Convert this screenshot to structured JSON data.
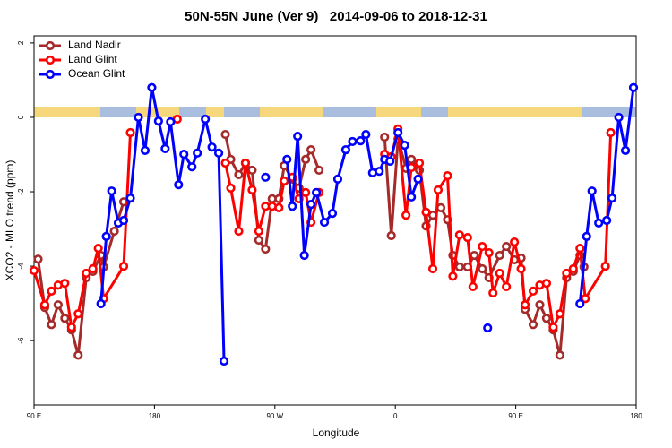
{
  "chart_data": {
    "type": "line",
    "title": "50N-55N June (Ver 9)   2014-09-06 to 2018-12-31",
    "x_label": "Longitude",
    "y_label": "XCO2 - MLO trend (ppm)",
    "xlim": [
      90,
      540
    ],
    "ylim": [
      -7.73,
      2.19
    ],
    "xticks": [
      {
        "value": 90,
        "label": "90 E"
      },
      {
        "value": 180,
        "label": "180"
      },
      {
        "value": 270,
        "label": "90 W"
      },
      {
        "value": 360,
        "label": "0"
      },
      {
        "value": 450,
        "label": "90 E"
      },
      {
        "value": 540,
        "label": "180"
      }
    ],
    "yticks": [
      2,
      0,
      -2,
      -4,
      -6
    ],
    "legend": "top-left",
    "series": [
      {
        "name": "Land Nadir",
        "color": "#a52a2a",
        "x": [
          93,
          98,
          103,
          108,
          113,
          118,
          123,
          129,
          134,
          140,
          142,
          150,
          157,
          null,
          233,
          237,
          243,
          248,
          253,
          258,
          263,
          268,
          273,
          277,
          283,
          288,
          293,
          297,
          303,
          null,
          352,
          357,
          362,
          368,
          372,
          378,
          383,
          388,
          394,
          399,
          403,
          408,
          414,
          419,
          425,
          430,
          438,
          443,
          449,
          454,
          457,
          463,
          468,
          473,
          478,
          483,
          488,
          493,
          498,
          501
        ],
        "values": [
          -3.81,
          -5.11,
          -5.57,
          -5.04,
          -5.4,
          -5.71,
          -6.39,
          -4.31,
          -4.14,
          -3.71,
          -4.02,
          -3.06,
          -2.27,
          null,
          -0.46,
          -1.13,
          -1.54,
          -1.23,
          -1.42,
          -3.3,
          -3.54,
          -2.19,
          -2.19,
          -1.3,
          -1.66,
          -1.9,
          -1.13,
          -0.87,
          -1.42,
          null,
          -0.53,
          -3.18,
          -0.58,
          -1.37,
          -1.13,
          -1.42,
          -2.92,
          -2.63,
          -2.43,
          -2.75,
          -3.71,
          -4.02,
          -4.02,
          -3.71,
          -4.07,
          -4.31,
          -3.71,
          -3.47,
          -3.83,
          -3.78,
          -5.16,
          -5.57,
          -5.04,
          -5.4,
          -5.71,
          -6.39,
          -4.31,
          -4.14,
          -3.71,
          -4.02
        ]
      },
      {
        "name": "Land Glint",
        "color": "#ff0000",
        "x": [
          90,
          98,
          103,
          108,
          113,
          118,
          123,
          129,
          134,
          138,
          142,
          157,
          162,
          null,
          197,
          null,
          233,
          237,
          243,
          248,
          253,
          258,
          263,
          268,
          273,
          277,
          283,
          288,
          293,
          297,
          303,
          null,
          352,
          357,
          362,
          368,
          372,
          378,
          383,
          388,
          392,
          399,
          403,
          408,
          414,
          418,
          425,
          430,
          433,
          438,
          443,
          449,
          454,
          457,
          463,
          468,
          473,
          478,
          483,
          488,
          493,
          498,
          502,
          517,
          521
        ],
        "values": [
          -4.12,
          -5.04,
          -4.67,
          -4.51,
          -4.46,
          -5.64,
          -5.28,
          -4.19,
          -4.07,
          -3.52,
          -4.87,
          -4.0,
          -0.41,
          null,
          -0.05,
          null,
          -1.23,
          -1.9,
          -3.06,
          -1.23,
          -1.95,
          -3.06,
          -2.39,
          -2.39,
          -2.43,
          -1.71,
          -1.61,
          -2.19,
          -2.02,
          -2.82,
          -2.02,
          null,
          -0.99,
          -1.06,
          -0.31,
          -2.63,
          -1.35,
          -1.23,
          -2.55,
          -4.07,
          -1.95,
          -1.57,
          -4.27,
          -3.16,
          -3.23,
          -4.55,
          -3.47,
          -3.64,
          -4.72,
          -4.19,
          -4.55,
          -3.35,
          -4.07,
          -5.04,
          -4.67,
          -4.51,
          -4.46,
          -5.64,
          -5.28,
          -4.19,
          -4.07,
          -3.52,
          -4.87,
          -4.0,
          -0.41
        ]
      },
      {
        "name": "Ocean Glint",
        "color": "#0000ff",
        "x": [
          140,
          144,
          148,
          153,
          157,
          162,
          168,
          173,
          178,
          183,
          188,
          192,
          198,
          202,
          208,
          212,
          218,
          223,
          228,
          232,
          null,
          263,
          null,
          279,
          283,
          287,
          292,
          297,
          301,
          307,
          313,
          317,
          323,
          328,
          334,
          338,
          343,
          348,
          352,
          356,
          362,
          367,
          372,
          377,
          null,
          429,
          null,
          498,
          503,
          507,
          512,
          518,
          522,
          527,
          532,
          538
        ],
        "values": [
          -5.01,
          -3.2,
          -1.98,
          -2.84,
          -2.77,
          -2.17,
          0.0,
          -0.89,
          0.8,
          -0.1,
          -0.84,
          -0.12,
          -1.81,
          -0.99,
          -1.33,
          -0.96,
          -0.05,
          -0.8,
          -0.96,
          -6.55,
          null,
          -1.61,
          null,
          -1.13,
          -2.39,
          -0.51,
          -3.71,
          -2.34,
          -2.02,
          -2.82,
          -2.58,
          -1.66,
          -0.87,
          -0.65,
          -0.63,
          -0.46,
          -1.49,
          -1.45,
          -1.13,
          -1.18,
          -0.41,
          -0.75,
          -2.14,
          -1.66,
          null,
          -5.66,
          null,
          -5.01,
          -3.2,
          -1.98,
          -2.84,
          -2.77,
          -2.17,
          0.0,
          -0.89,
          0.8
        ]
      }
    ]
  }
}
